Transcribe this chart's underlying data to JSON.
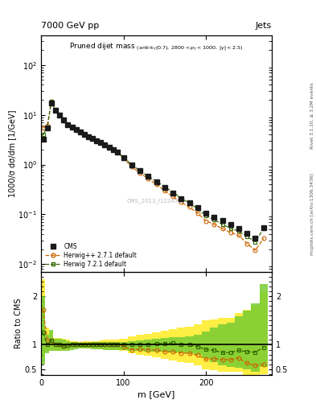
{
  "header_left": "7000 GeV pp",
  "header_right": "Jets",
  "watermark": "CMS_2013_I1224539",
  "ylabel_main": "1000/σ dσ/dm [1/GeV]",
  "ylabel_ratio": "Ratio to CMS",
  "xlabel": "m [GeV]",
  "xlim": [
    0,
    280
  ],
  "ylim_main": [
    0.007,
    400
  ],
  "ylim_ratio": [
    0.38,
    2.5
  ],
  "cms_x": [
    2.5,
    7.5,
    12.5,
    17.5,
    22.5,
    27.5,
    32.5,
    37.5,
    42.5,
    47.5,
    52.5,
    57.5,
    62.5,
    67.5,
    72.5,
    77.5,
    82.5,
    87.5,
    92.5,
    100,
    110,
    120,
    130,
    140,
    150,
    160,
    170,
    180,
    190,
    200,
    210,
    220,
    230,
    240,
    250,
    260,
    270
  ],
  "cms_y": [
    3.2,
    5.5,
    17.0,
    12.5,
    10.0,
    7.8,
    6.4,
    5.6,
    5.0,
    4.5,
    4.0,
    3.6,
    3.3,
    3.0,
    2.8,
    2.5,
    2.2,
    2.0,
    1.8,
    1.4,
    1.0,
    0.75,
    0.58,
    0.45,
    0.35,
    0.27,
    0.21,
    0.17,
    0.135,
    0.105,
    0.088,
    0.075,
    0.062,
    0.052,
    0.042,
    0.033,
    0.055
  ],
  "hw271_x": [
    2.5,
    7.5,
    12.5,
    17.5,
    22.5,
    27.5,
    32.5,
    37.5,
    42.5,
    47.5,
    52.5,
    57.5,
    62.5,
    67.5,
    72.5,
    77.5,
    82.5,
    87.5,
    92.5,
    100,
    110,
    120,
    130,
    140,
    150,
    160,
    170,
    180,
    190,
    200,
    210,
    220,
    230,
    240,
    250,
    260,
    270
  ],
  "hw271_y": [
    5.5,
    6.0,
    18.5,
    12.5,
    10.0,
    7.6,
    6.3,
    5.6,
    5.0,
    4.5,
    4.0,
    3.6,
    3.3,
    3.0,
    2.8,
    2.5,
    2.2,
    2.0,
    1.8,
    1.35,
    0.9,
    0.68,
    0.52,
    0.4,
    0.3,
    0.23,
    0.175,
    0.14,
    0.106,
    0.074,
    0.063,
    0.052,
    0.043,
    0.038,
    0.026,
    0.019,
    0.033
  ],
  "hw721_x": [
    2.5,
    7.5,
    12.5,
    17.5,
    22.5,
    27.5,
    32.5,
    37.5,
    42.5,
    47.5,
    52.5,
    57.5,
    62.5,
    67.5,
    72.5,
    77.5,
    82.5,
    87.5,
    92.5,
    100,
    110,
    120,
    130,
    140,
    150,
    160,
    170,
    180,
    190,
    200,
    210,
    220,
    230,
    240,
    250,
    260,
    270
  ],
  "hw721_y": [
    4.0,
    5.5,
    18.5,
    12.5,
    10.0,
    7.6,
    6.3,
    5.6,
    5.0,
    4.5,
    4.0,
    3.6,
    3.3,
    3.0,
    2.8,
    2.5,
    2.2,
    2.0,
    1.8,
    1.4,
    1.0,
    0.75,
    0.58,
    0.46,
    0.36,
    0.28,
    0.21,
    0.17,
    0.13,
    0.095,
    0.078,
    0.063,
    0.052,
    0.046,
    0.036,
    0.028,
    0.052
  ],
  "hw271_ratio": [
    1.72,
    1.09,
    1.09,
    1.0,
    1.0,
    0.975,
    0.985,
    1.0,
    1.0,
    1.0,
    1.0,
    1.0,
    1.0,
    1.0,
    1.0,
    1.0,
    1.0,
    1.0,
    1.0,
    0.964,
    0.9,
    0.906,
    0.896,
    0.889,
    0.857,
    0.852,
    0.833,
    0.824,
    0.786,
    0.705,
    0.716,
    0.693,
    0.694,
    0.731,
    0.619,
    0.576,
    0.6
  ],
  "hw721_ratio": [
    1.25,
    1.0,
    1.09,
    1.0,
    1.0,
    0.975,
    0.985,
    1.0,
    1.0,
    1.0,
    1.0,
    1.0,
    1.0,
    1.0,
    1.0,
    1.0,
    1.0,
    1.0,
    1.0,
    1.0,
    1.0,
    1.0,
    1.0,
    1.022,
    1.029,
    1.037,
    1.0,
    1.0,
    0.963,
    0.905,
    0.886,
    0.84,
    0.839,
    0.885,
    0.857,
    0.848,
    0.945
  ],
  "hw271_band_lo": [
    0.72,
    0.86,
    0.9,
    0.88,
    0.88,
    0.88,
    0.9,
    0.92,
    0.93,
    0.94,
    0.93,
    0.93,
    0.92,
    0.92,
    0.91,
    0.9,
    0.9,
    0.89,
    0.89,
    0.87,
    0.82,
    0.79,
    0.77,
    0.74,
    0.71,
    0.68,
    0.65,
    0.62,
    0.58,
    0.5,
    0.48,
    0.45,
    0.44,
    0.45,
    0.38,
    0.3,
    0.4
  ],
  "hw271_band_hi": [
    2.35,
    1.35,
    1.28,
    1.14,
    1.14,
    1.12,
    1.1,
    1.08,
    1.07,
    1.06,
    1.07,
    1.07,
    1.08,
    1.08,
    1.09,
    1.1,
    1.1,
    1.11,
    1.11,
    1.13,
    1.18,
    1.21,
    1.23,
    1.26,
    1.29,
    1.32,
    1.35,
    1.38,
    1.42,
    1.5,
    1.52,
    1.55,
    1.56,
    1.65,
    1.72,
    1.8,
    2.1
  ],
  "hw721_band_lo": [
    0.6,
    0.82,
    0.88,
    0.87,
    0.87,
    0.87,
    0.88,
    0.9,
    0.91,
    0.92,
    0.92,
    0.92,
    0.91,
    0.91,
    0.91,
    0.9,
    0.9,
    0.9,
    0.9,
    0.9,
    0.88,
    0.87,
    0.86,
    0.86,
    0.86,
    0.85,
    0.84,
    0.83,
    0.8,
    0.72,
    0.65,
    0.58,
    0.54,
    0.52,
    0.5,
    0.45,
    0.55
  ],
  "hw721_band_hi": [
    2.0,
    1.2,
    1.3,
    1.13,
    1.13,
    1.1,
    1.08,
    1.06,
    1.05,
    1.04,
    1.04,
    1.04,
    1.05,
    1.05,
    1.05,
    1.06,
    1.06,
    1.06,
    1.06,
    1.06,
    1.08,
    1.09,
    1.1,
    1.12,
    1.14,
    1.15,
    1.16,
    1.17,
    1.2,
    1.28,
    1.35,
    1.42,
    1.46,
    1.58,
    1.7,
    1.85,
    2.25
  ],
  "bin_edges": [
    0,
    5,
    10,
    15,
    20,
    25,
    30,
    35,
    40,
    45,
    50,
    55,
    60,
    65,
    70,
    75,
    80,
    85,
    90,
    95,
    105,
    115,
    125,
    135,
    145,
    155,
    165,
    175,
    185,
    195,
    205,
    215,
    225,
    235,
    245,
    255,
    265,
    275
  ],
  "color_cms": "#1a1a1a",
  "color_hw271": "#cc6600",
  "color_hw721": "#336600",
  "color_hw271_band": "#ffee44",
  "color_hw721_band": "#77cc33",
  "legend_entries": [
    "CMS",
    "Herwig++ 2.7.1 default",
    "Herwig 7.2.1 default"
  ],
  "right_label1": "Rivet 3.1.10, ≥ 3.2M events",
  "right_label2": "mcplots.cern.ch [arXiv:1306.3436]",
  "yticks_ratio": [
    0.5,
    1.0,
    2.0
  ],
  "ytick_ratio_labels": [
    "0.5",
    "1",
    "2"
  ]
}
